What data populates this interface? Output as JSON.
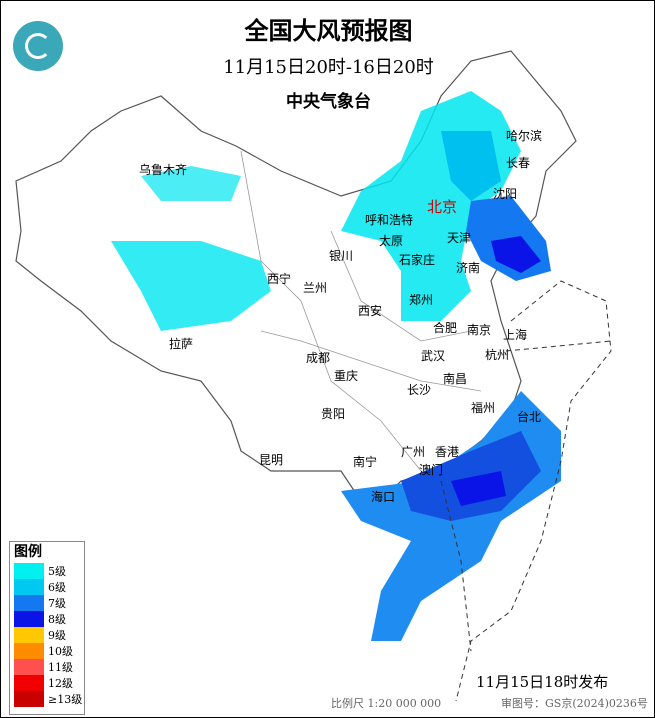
{
  "header": {
    "title": "全国大风预报图",
    "period": "11月15日20时-16日20时",
    "issuer": "中央气象台"
  },
  "logo": "china-meteorological-logo",
  "cities": [
    "乌鲁木齐",
    "哈尔滨",
    "长春",
    "沈阳",
    "北京",
    "天津",
    "呼和浩特",
    "太原",
    "石家庄",
    "银川",
    "济南",
    "西宁",
    "兰州",
    "郑州",
    "西安",
    "合肥",
    "南京",
    "上海",
    "拉萨",
    "成都",
    "武汉",
    "杭州",
    "重庆",
    "南昌",
    "长沙",
    "福州",
    "台北",
    "贵阳",
    "昆明",
    "广州",
    "香港",
    "澳门",
    "南宁",
    "海口"
  ],
  "legend": {
    "title": "图例",
    "items": [
      {
        "label": "5级",
        "color": "#00f0f0"
      },
      {
        "label": "6级",
        "color": "#00c8f0"
      },
      {
        "label": "7级",
        "color": "#1478f0"
      },
      {
        "label": "8级",
        "color": "#0a14e6"
      },
      {
        "label": "9级",
        "color": "#ffc800"
      },
      {
        "label": "10级",
        "color": "#ff8c00"
      },
      {
        "label": "11级",
        "color": "#ff5050"
      },
      {
        "label": "12级",
        "color": "#f00000"
      },
      {
        "label": "≥13级",
        "color": "#c80000"
      }
    ]
  },
  "footer": {
    "published": "11月15日18时发布",
    "scale": "比例尺 1:20 000 000",
    "review_no": "审图号：GS京(2024)0236号"
  }
}
